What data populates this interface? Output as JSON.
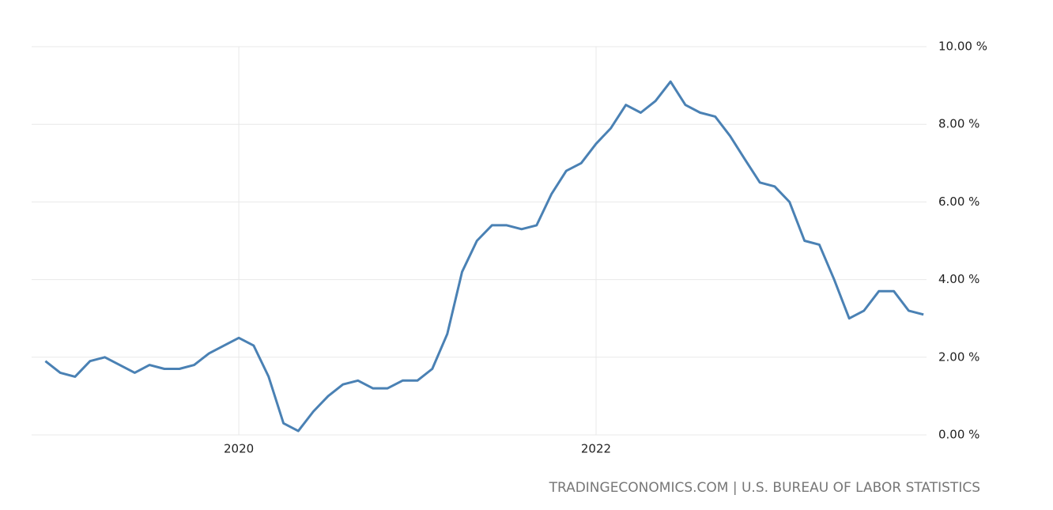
{
  "chart_data": {
    "type": "line",
    "source": "TRADINGECONOMICS.COM | U.S. BUREAU OF LABOR STATISTICS",
    "x": [
      2018.917,
      2019.0,
      2019.083,
      2019.167,
      2019.25,
      2019.333,
      2019.417,
      2019.5,
      2019.583,
      2019.667,
      2019.75,
      2019.833,
      2019.917,
      2020.0,
      2020.083,
      2020.167,
      2020.25,
      2020.333,
      2020.417,
      2020.5,
      2020.583,
      2020.667,
      2020.75,
      2020.833,
      2020.917,
      2021.0,
      2021.083,
      2021.167,
      2021.25,
      2021.333,
      2021.417,
      2021.5,
      2021.583,
      2021.667,
      2021.75,
      2021.833,
      2021.917,
      2022.0,
      2022.083,
      2022.167,
      2022.25,
      2022.333,
      2022.417,
      2022.5,
      2022.583,
      2022.667,
      2022.75,
      2022.833,
      2022.917,
      2023.0,
      2023.083,
      2023.167,
      2023.25,
      2023.333,
      2023.417,
      2023.5,
      2023.583,
      2023.667,
      2023.75,
      2023.833
    ],
    "series": [
      {
        "color": "#4a81b4",
        "values": [
          1.9,
          1.6,
          1.5,
          1.9,
          2.0,
          1.8,
          1.6,
          1.8,
          1.7,
          1.7,
          1.8,
          2.1,
          2.3,
          2.5,
          2.3,
          1.5,
          0.3,
          0.1,
          0.6,
          1.0,
          1.3,
          1.4,
          1.2,
          1.2,
          1.4,
          1.4,
          1.7,
          2.6,
          4.2,
          5.0,
          5.4,
          5.4,
          5.3,
          5.4,
          6.2,
          6.8,
          7.0,
          7.5,
          7.9,
          8.5,
          8.3,
          8.6,
          9.1,
          8.5,
          8.3,
          8.2,
          7.7,
          7.1,
          6.5,
          6.4,
          6.0,
          5.0,
          4.9,
          4.0,
          3.0,
          3.2,
          3.7,
          3.7,
          3.2,
          3.1
        ]
      }
    ],
    "xlim": [
      2018.84,
      2023.85
    ],
    "xticks": [
      2020,
      2022
    ],
    "ylim": [
      0,
      10
    ],
    "yticks": [
      {
        "value": 0,
        "label": "0.00 %"
      },
      {
        "value": 2,
        "label": "2.00 %"
      },
      {
        "value": 4,
        "label": "4.00 %"
      },
      {
        "value": 6,
        "label": "6.00 %"
      },
      {
        "value": 8,
        "label": "8.00 %"
      },
      {
        "value": 10,
        "label": "10.00 %"
      }
    ],
    "grid": true
  }
}
